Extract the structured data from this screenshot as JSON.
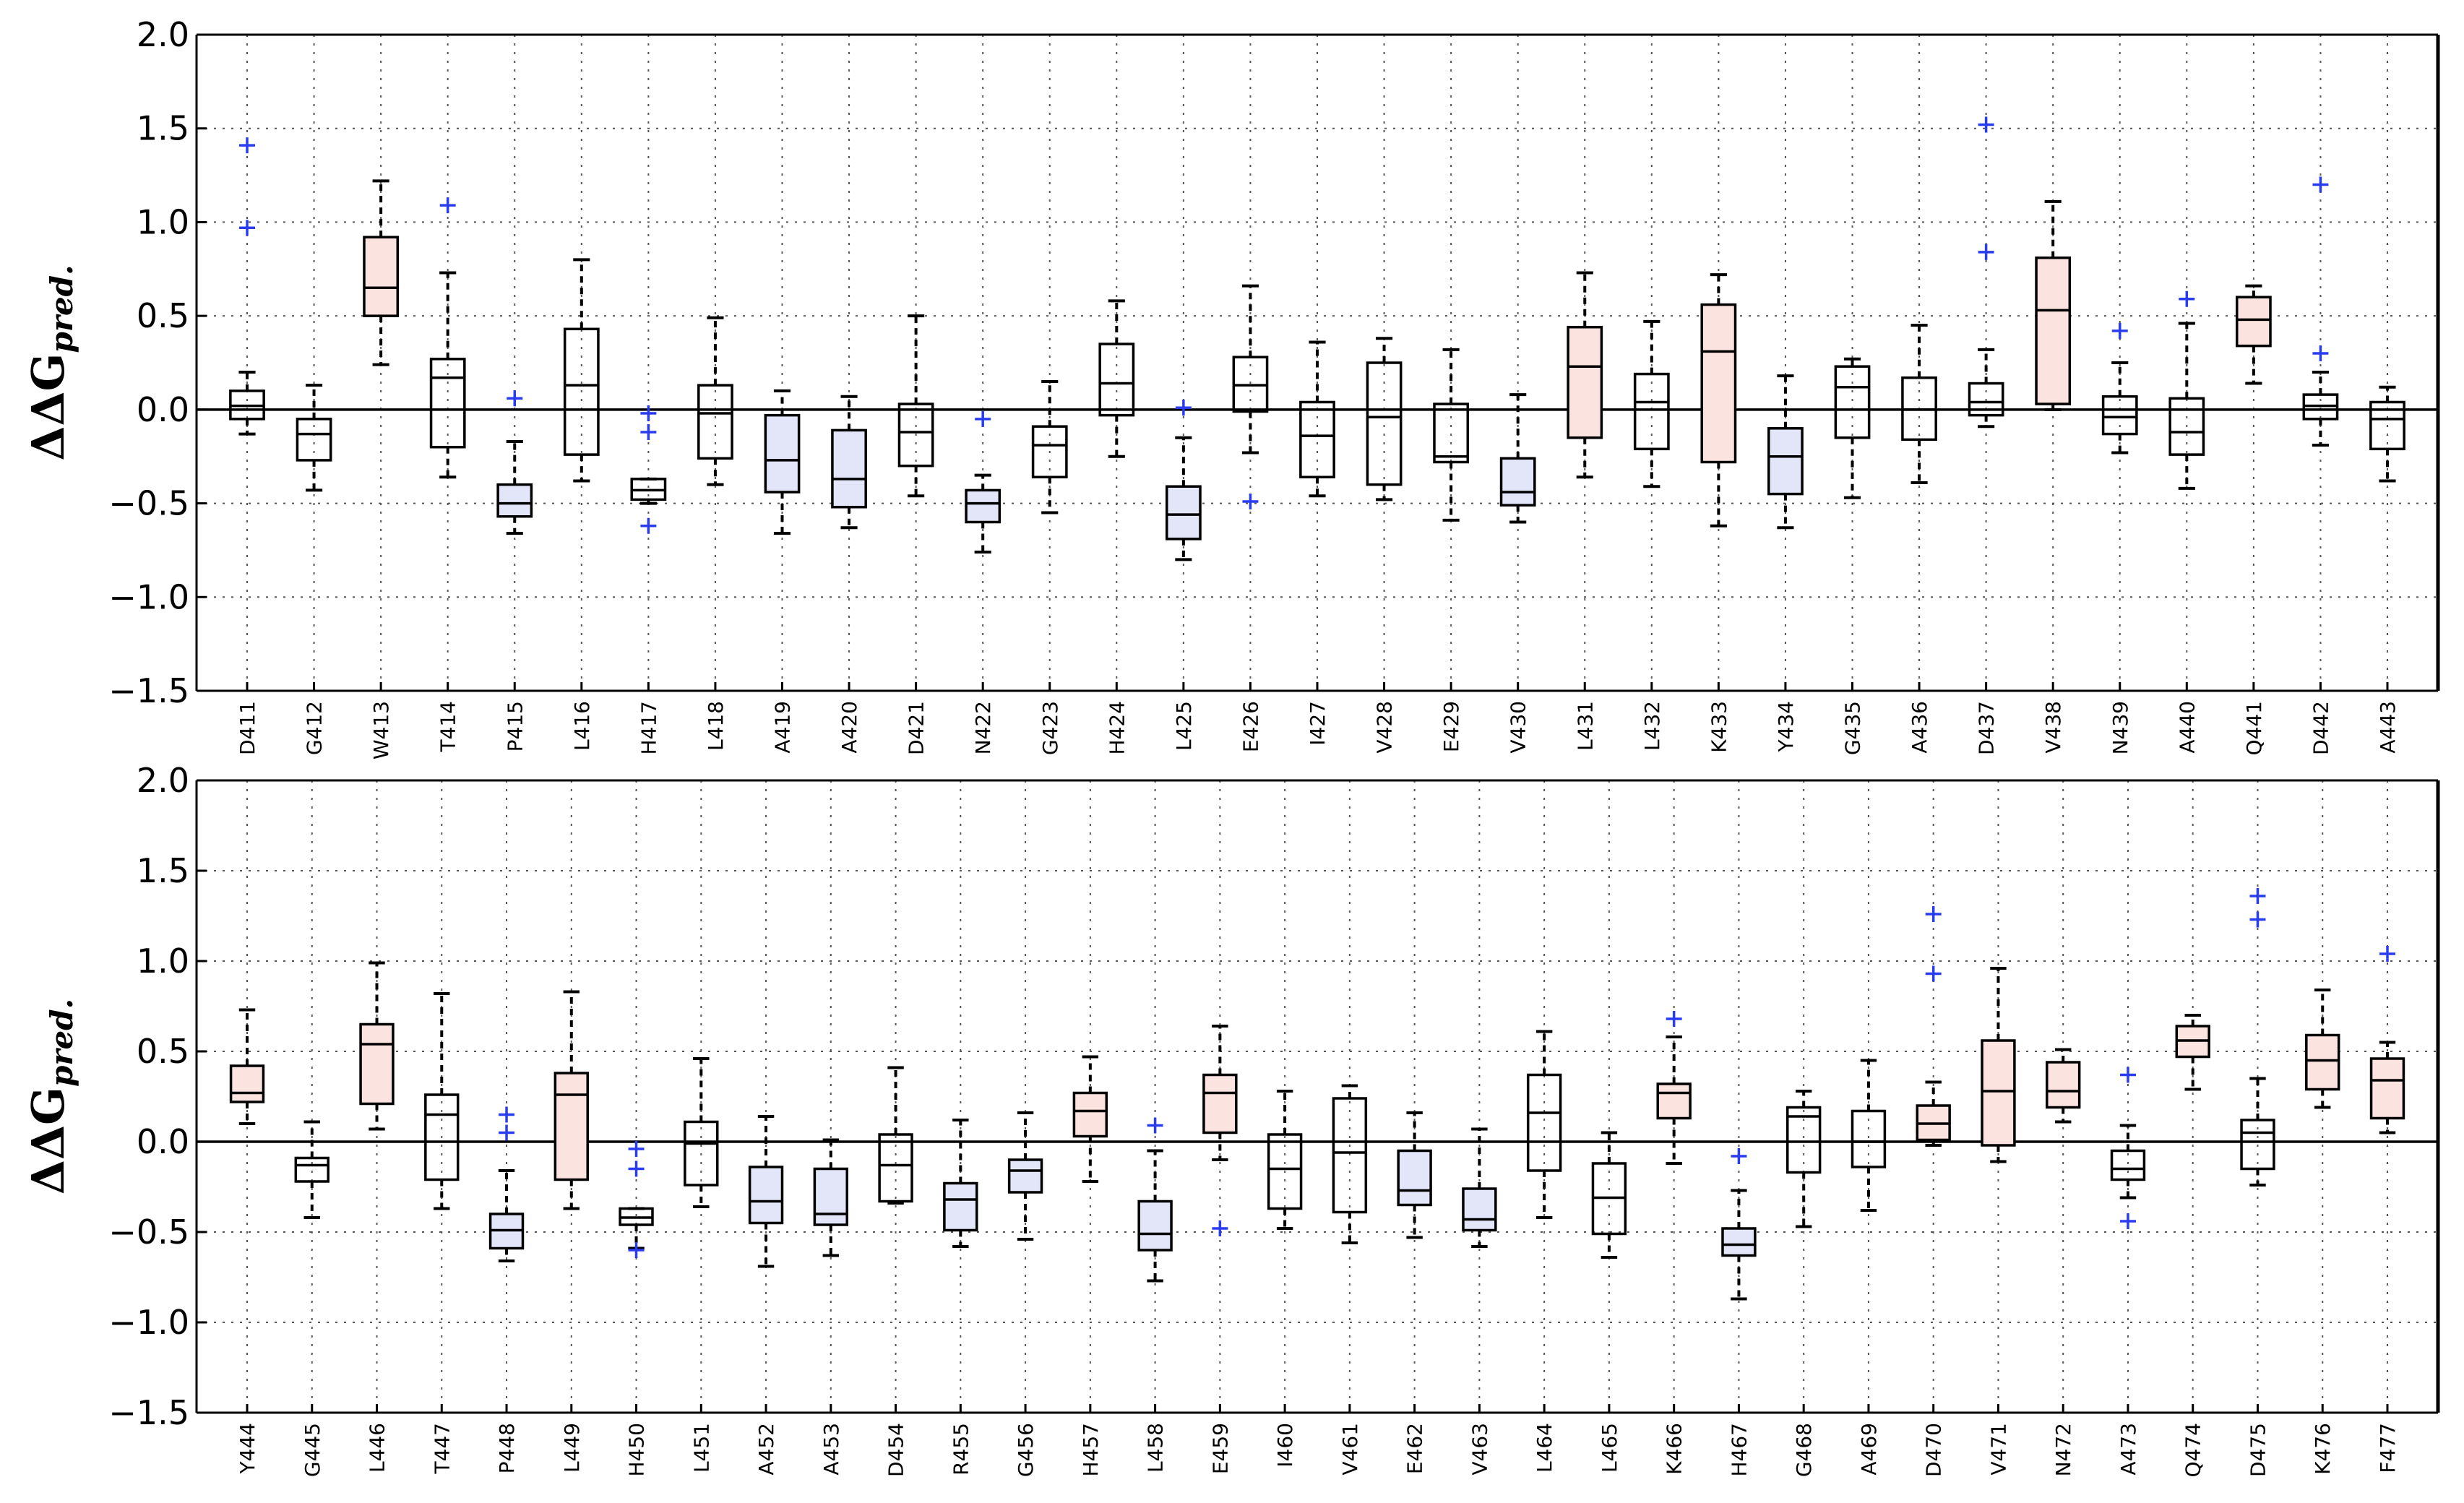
{
  "chart_data": [
    {
      "type": "box",
      "ylabel_main": "ΔΔG",
      "ylabel_sub": "pred.",
      "ylim": [
        -1.5,
        2.0
      ],
      "yticks": [
        2.0,
        1.5,
        1.0,
        0.5,
        0.0,
        -0.5,
        -1.0,
        -1.5
      ],
      "ytick_labels": [
        "2.0",
        "1.5",
        "1.0",
        "0.5",
        "0.0",
        "−0.5",
        "−1.0",
        "−1.5"
      ],
      "grid": true,
      "zero_line": true,
      "categories": [
        "D411",
        "G412",
        "W413",
        "T414",
        "P415",
        "L416",
        "H417",
        "L418",
        "A419",
        "A420",
        "D421",
        "N422",
        "G423",
        "H424",
        "L425",
        "E426",
        "I427",
        "V428",
        "E429",
        "V430",
        "L431",
        "L432",
        "K433",
        "Y434",
        "G435",
        "A436",
        "D437",
        "V438",
        "N439",
        "A440",
        "Q441",
        "D442",
        "A443"
      ],
      "boxes": [
        {
          "q1": -0.05,
          "median": 0.02,
          "q3": 0.1,
          "wlo": -0.13,
          "whi": 0.2,
          "fill": "none",
          "outliers": [
            0.97,
            1.41
          ]
        },
        {
          "q1": -0.27,
          "median": -0.13,
          "q3": -0.05,
          "wlo": -0.43,
          "whi": 0.13,
          "fill": "none",
          "outliers": []
        },
        {
          "q1": 0.5,
          "median": 0.65,
          "q3": 0.92,
          "wlo": 0.24,
          "whi": 1.22,
          "fill": "red",
          "outliers": []
        },
        {
          "q1": -0.2,
          "median": 0.17,
          "q3": 0.27,
          "wlo": -0.36,
          "whi": 0.73,
          "fill": "none",
          "outliers": [
            1.09
          ]
        },
        {
          "q1": -0.57,
          "median": -0.5,
          "q3": -0.4,
          "wlo": -0.66,
          "whi": -0.17,
          "fill": "blue",
          "outliers": [
            0.06
          ]
        },
        {
          "q1": -0.24,
          "median": 0.13,
          "q3": 0.43,
          "wlo": -0.38,
          "whi": 0.8,
          "fill": "none",
          "outliers": []
        },
        {
          "q1": -0.48,
          "median": -0.43,
          "q3": -0.37,
          "wlo": -0.5,
          "whi": -0.37,
          "fill": "none",
          "outliers": [
            -0.02,
            -0.12,
            -0.62
          ]
        },
        {
          "q1": -0.26,
          "median": -0.02,
          "q3": 0.13,
          "wlo": -0.4,
          "whi": 0.49,
          "fill": "none",
          "outliers": []
        },
        {
          "q1": -0.44,
          "median": -0.27,
          "q3": -0.03,
          "wlo": -0.66,
          "whi": 0.1,
          "fill": "blue",
          "outliers": []
        },
        {
          "q1": -0.52,
          "median": -0.37,
          "q3": -0.11,
          "wlo": -0.63,
          "whi": 0.07,
          "fill": "blue",
          "outliers": []
        },
        {
          "q1": -0.3,
          "median": -0.12,
          "q3": 0.03,
          "wlo": -0.46,
          "whi": 0.5,
          "fill": "none",
          "outliers": []
        },
        {
          "q1": -0.6,
          "median": -0.5,
          "q3": -0.43,
          "wlo": -0.76,
          "whi": -0.35,
          "fill": "blue",
          "outliers": [
            -0.05
          ]
        },
        {
          "q1": -0.36,
          "median": -0.19,
          "q3": -0.09,
          "wlo": -0.55,
          "whi": 0.15,
          "fill": "none",
          "outliers": []
        },
        {
          "q1": -0.03,
          "median": 0.14,
          "q3": 0.35,
          "wlo": -0.25,
          "whi": 0.58,
          "fill": "none",
          "outliers": []
        },
        {
          "q1": -0.69,
          "median": -0.56,
          "q3": -0.41,
          "wlo": -0.8,
          "whi": -0.15,
          "fill": "blue",
          "outliers": [
            0.01
          ]
        },
        {
          "q1": -0.01,
          "median": 0.13,
          "q3": 0.28,
          "wlo": -0.23,
          "whi": 0.66,
          "fill": "none",
          "outliers": [
            -0.49
          ]
        },
        {
          "q1": -0.36,
          "median": -0.14,
          "q3": 0.04,
          "wlo": -0.46,
          "whi": 0.36,
          "fill": "none",
          "outliers": []
        },
        {
          "q1": -0.4,
          "median": -0.04,
          "q3": 0.25,
          "wlo": -0.48,
          "whi": 0.38,
          "fill": "none",
          "outliers": []
        },
        {
          "q1": -0.28,
          "median": -0.25,
          "q3": 0.03,
          "wlo": -0.59,
          "whi": 0.32,
          "fill": "none",
          "outliers": []
        },
        {
          "q1": -0.51,
          "median": -0.44,
          "q3": -0.26,
          "wlo": -0.6,
          "whi": 0.08,
          "fill": "blue",
          "outliers": []
        },
        {
          "q1": -0.15,
          "median": 0.23,
          "q3": 0.44,
          "wlo": -0.36,
          "whi": 0.73,
          "fill": "red",
          "outliers": []
        },
        {
          "q1": -0.21,
          "median": 0.04,
          "q3": 0.19,
          "wlo": -0.41,
          "whi": 0.47,
          "fill": "none",
          "outliers": []
        },
        {
          "q1": -0.28,
          "median": 0.31,
          "q3": 0.56,
          "wlo": -0.62,
          "whi": 0.72,
          "fill": "red",
          "outliers": []
        },
        {
          "q1": -0.45,
          "median": -0.25,
          "q3": -0.1,
          "wlo": -0.63,
          "whi": 0.18,
          "fill": "blue",
          "outliers": []
        },
        {
          "q1": -0.15,
          "median": 0.12,
          "q3": 0.23,
          "wlo": -0.47,
          "whi": 0.27,
          "fill": "none",
          "outliers": []
        },
        {
          "q1": -0.16,
          "median": 0.0,
          "q3": 0.17,
          "wlo": -0.39,
          "whi": 0.45,
          "fill": "none",
          "outliers": []
        },
        {
          "q1": -0.03,
          "median": 0.04,
          "q3": 0.14,
          "wlo": -0.09,
          "whi": 0.32,
          "fill": "none",
          "outliers": [
            0.84,
            1.52
          ]
        },
        {
          "q1": 0.03,
          "median": 0.53,
          "q3": 0.81,
          "wlo": 0.0,
          "whi": 1.11,
          "fill": "red",
          "outliers": []
        },
        {
          "q1": -0.13,
          "median": -0.04,
          "q3": 0.07,
          "wlo": -0.23,
          "whi": 0.25,
          "fill": "none",
          "outliers": [
            0.42
          ]
        },
        {
          "q1": -0.24,
          "median": -0.12,
          "q3": 0.06,
          "wlo": -0.42,
          "whi": 0.46,
          "fill": "none",
          "outliers": [
            0.59
          ]
        },
        {
          "q1": 0.34,
          "median": 0.48,
          "q3": 0.6,
          "wlo": 0.14,
          "whi": 0.66,
          "fill": "red",
          "outliers": []
        },
        {
          "q1": -0.05,
          "median": 0.02,
          "q3": 0.08,
          "wlo": -0.19,
          "whi": 0.2,
          "fill": "none",
          "outliers": [
            0.3,
            1.2
          ]
        },
        {
          "q1": -0.21,
          "median": -0.05,
          "q3": 0.04,
          "wlo": -0.38,
          "whi": 0.12,
          "fill": "none",
          "outliers": []
        }
      ]
    },
    {
      "type": "box",
      "ylabel_main": "ΔΔG",
      "ylabel_sub": "pred.",
      "ylim": [
        -1.5,
        2.0
      ],
      "yticks": [
        2.0,
        1.5,
        1.0,
        0.5,
        0.0,
        -0.5,
        -1.0,
        -1.5
      ],
      "ytick_labels": [
        "2.0",
        "1.5",
        "1.0",
        "0.5",
        "0.0",
        "−0.5",
        "−1.0",
        "−1.5"
      ],
      "grid": true,
      "zero_line": true,
      "categories": [
        "Y444",
        "G445",
        "L446",
        "T447",
        "P448",
        "L449",
        "H450",
        "L451",
        "A452",
        "A453",
        "D454",
        "R455",
        "G456",
        "H457",
        "L458",
        "E459",
        "I460",
        "V461",
        "E462",
        "V463",
        "L464",
        "L465",
        "K466",
        "H467",
        "G468",
        "A469",
        "D470",
        "V471",
        "N472",
        "A473",
        "Q474",
        "D475",
        "K476",
        "F477"
      ],
      "boxes": [
        {
          "q1": 0.22,
          "median": 0.27,
          "q3": 0.42,
          "wlo": 0.1,
          "whi": 0.73,
          "fill": "red",
          "outliers": []
        },
        {
          "q1": -0.22,
          "median": -0.13,
          "q3": -0.09,
          "wlo": -0.42,
          "whi": 0.11,
          "fill": "none",
          "outliers": []
        },
        {
          "q1": 0.21,
          "median": 0.54,
          "q3": 0.65,
          "wlo": 0.07,
          "whi": 0.99,
          "fill": "red",
          "outliers": []
        },
        {
          "q1": -0.21,
          "median": 0.15,
          "q3": 0.26,
          "wlo": -0.37,
          "whi": 0.82,
          "fill": "none",
          "outliers": []
        },
        {
          "q1": -0.59,
          "median": -0.49,
          "q3": -0.4,
          "wlo": -0.66,
          "whi": -0.16,
          "fill": "blue",
          "outliers": [
            0.05,
            0.15
          ]
        },
        {
          "q1": -0.21,
          "median": 0.26,
          "q3": 0.38,
          "wlo": -0.37,
          "whi": 0.83,
          "fill": "red",
          "outliers": []
        },
        {
          "q1": -0.46,
          "median": -0.42,
          "q3": -0.37,
          "wlo": -0.59,
          "whi": -0.37,
          "fill": "none",
          "outliers": [
            -0.04,
            -0.15,
            -0.6
          ]
        },
        {
          "q1": -0.24,
          "median": -0.01,
          "q3": 0.11,
          "wlo": -0.36,
          "whi": 0.46,
          "fill": "none",
          "outliers": []
        },
        {
          "q1": -0.45,
          "median": -0.33,
          "q3": -0.14,
          "wlo": -0.69,
          "whi": 0.14,
          "fill": "blue",
          "outliers": []
        },
        {
          "q1": -0.46,
          "median": -0.4,
          "q3": -0.15,
          "wlo": -0.63,
          "whi": 0.01,
          "fill": "blue",
          "outliers": []
        },
        {
          "q1": -0.33,
          "median": -0.13,
          "q3": 0.04,
          "wlo": -0.34,
          "whi": 0.41,
          "fill": "none",
          "outliers": []
        },
        {
          "q1": -0.49,
          "median": -0.32,
          "q3": -0.23,
          "wlo": -0.58,
          "whi": 0.12,
          "fill": "blue",
          "outliers": []
        },
        {
          "q1": -0.28,
          "median": -0.16,
          "q3": -0.1,
          "wlo": -0.54,
          "whi": 0.16,
          "fill": "blue",
          "outliers": []
        },
        {
          "q1": 0.03,
          "median": 0.17,
          "q3": 0.27,
          "wlo": -0.22,
          "whi": 0.47,
          "fill": "red",
          "outliers": []
        },
        {
          "q1": -0.6,
          "median": -0.51,
          "q3": -0.33,
          "wlo": -0.77,
          "whi": -0.05,
          "fill": "blue",
          "outliers": [
            0.09
          ]
        },
        {
          "q1": 0.05,
          "median": 0.27,
          "q3": 0.37,
          "wlo": -0.1,
          "whi": 0.64,
          "fill": "red",
          "outliers": [
            -0.48
          ]
        },
        {
          "q1": -0.37,
          "median": -0.15,
          "q3": 0.04,
          "wlo": -0.48,
          "whi": 0.28,
          "fill": "none",
          "outliers": []
        },
        {
          "q1": -0.39,
          "median": -0.06,
          "q3": 0.24,
          "wlo": -0.56,
          "whi": 0.31,
          "fill": "none",
          "outliers": []
        },
        {
          "q1": -0.35,
          "median": -0.27,
          "q3": -0.05,
          "wlo": -0.53,
          "whi": 0.16,
          "fill": "blue",
          "outliers": []
        },
        {
          "q1": -0.49,
          "median": -0.43,
          "q3": -0.26,
          "wlo": -0.58,
          "whi": 0.07,
          "fill": "blue",
          "outliers": []
        },
        {
          "q1": -0.16,
          "median": 0.16,
          "q3": 0.37,
          "wlo": -0.42,
          "whi": 0.61,
          "fill": "none",
          "outliers": []
        },
        {
          "q1": -0.51,
          "median": -0.31,
          "q3": -0.12,
          "wlo": -0.64,
          "whi": 0.05,
          "fill": "none",
          "outliers": []
        },
        {
          "q1": 0.13,
          "median": 0.27,
          "q3": 0.32,
          "wlo": -0.12,
          "whi": 0.58,
          "fill": "red",
          "outliers": [
            0.68
          ]
        },
        {
          "q1": -0.63,
          "median": -0.57,
          "q3": -0.48,
          "wlo": -0.87,
          "whi": -0.27,
          "fill": "blue",
          "outliers": [
            -0.08
          ]
        },
        {
          "q1": -0.17,
          "median": 0.14,
          "q3": 0.19,
          "wlo": -0.47,
          "whi": 0.28,
          "fill": "none",
          "outliers": []
        },
        {
          "q1": -0.14,
          "median": 0.0,
          "q3": 0.17,
          "wlo": -0.38,
          "whi": 0.45,
          "fill": "none",
          "outliers": []
        },
        {
          "q1": 0.01,
          "median": 0.1,
          "q3": 0.2,
          "wlo": -0.02,
          "whi": 0.33,
          "fill": "red",
          "outliers": [
            0.93,
            1.26
          ]
        },
        {
          "q1": -0.02,
          "median": 0.28,
          "q3": 0.56,
          "wlo": -0.11,
          "whi": 0.96,
          "fill": "red",
          "outliers": []
        },
        {
          "q1": 0.19,
          "median": 0.28,
          "q3": 0.44,
          "wlo": 0.11,
          "whi": 0.51,
          "fill": "red",
          "outliers": []
        },
        {
          "q1": -0.21,
          "median": -0.15,
          "q3": -0.05,
          "wlo": -0.31,
          "whi": 0.09,
          "fill": "none",
          "outliers": [
            0.37,
            -0.44
          ]
        },
        {
          "q1": 0.47,
          "median": 0.56,
          "q3": 0.64,
          "wlo": 0.29,
          "whi": 0.7,
          "fill": "red",
          "outliers": []
        },
        {
          "q1": -0.15,
          "median": 0.05,
          "q3": 0.12,
          "wlo": -0.24,
          "whi": 0.35,
          "fill": "none",
          "outliers": [
            1.23,
            1.36
          ]
        },
        {
          "q1": 0.29,
          "median": 0.45,
          "q3": 0.59,
          "wlo": 0.19,
          "whi": 0.84,
          "fill": "red",
          "outliers": []
        },
        {
          "q1": 0.13,
          "median": 0.34,
          "q3": 0.46,
          "wlo": 0.05,
          "whi": 0.55,
          "fill": "red",
          "outliers": [
            1.04
          ]
        }
      ]
    }
  ],
  "colors": {
    "red_fill": "#fbe3e0",
    "blue_fill": "#e3e6f8",
    "outlier": "#2a3cf0",
    "axis": "#000000",
    "grid": "#555555"
  }
}
